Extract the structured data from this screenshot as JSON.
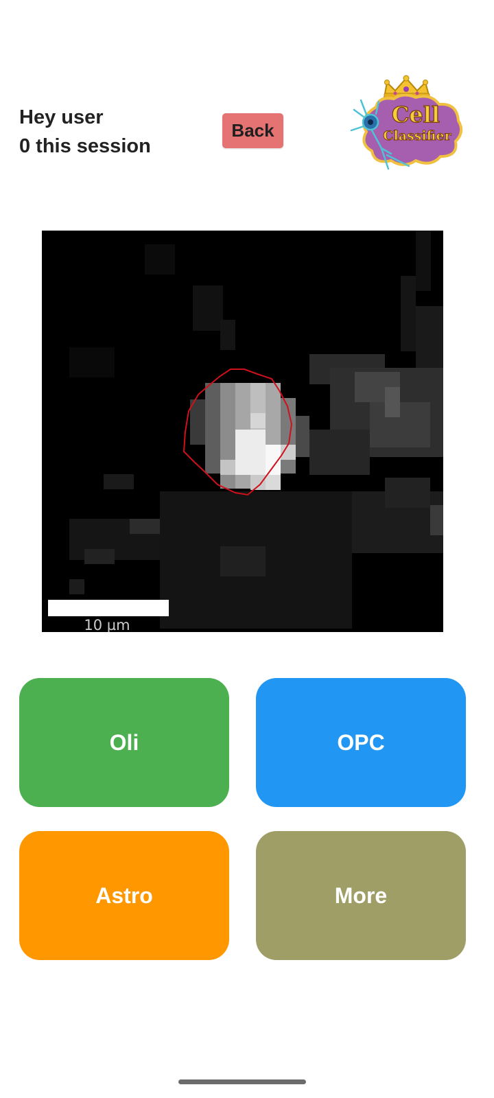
{
  "header": {
    "greeting": "Hey user",
    "session_count": "0 this session",
    "back_label": "Back",
    "back_color": "#e57373"
  },
  "logo": {
    "line1": "Cell",
    "line2": "Classifier",
    "icon": "neuron-icon",
    "crown_icon": "crown-icon"
  },
  "image": {
    "scale_label": "10 µm",
    "outline_color": "#d0101a"
  },
  "buttons": [
    {
      "label": "Oli",
      "color": "#4caf50"
    },
    {
      "label": "OPC",
      "color": "#2196f3"
    },
    {
      "label": "Astro",
      "color": "#ff9800"
    },
    {
      "label": "More",
      "color": "#9e9e66"
    }
  ]
}
